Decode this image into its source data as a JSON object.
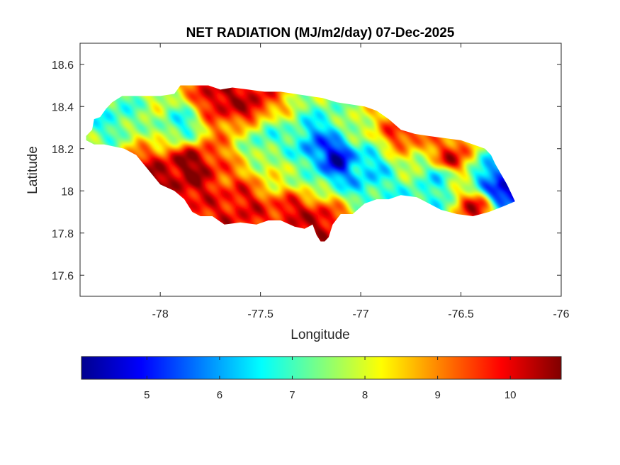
{
  "chart_data": {
    "type": "heatmap",
    "title": "NET RADIATION (MJ/m2/day) 07-Dec-2025",
    "xlabel": "Longitude",
    "ylabel": "Latitude",
    "xlim": [
      -78.4,
      -76
    ],
    "ylim": [
      17.5,
      18.7
    ],
    "xticks": [
      -78,
      -77.5,
      -77,
      -76.5,
      -76
    ],
    "yticks": [
      17.6,
      17.8,
      18,
      18.2,
      18.4,
      18.6
    ],
    "colormap": "jet",
    "colorbar": {
      "orientation": "horizontal",
      "range": [
        4.1,
        10.7
      ],
      "ticks": [
        5,
        6,
        7,
        8,
        9,
        10
      ]
    },
    "region_outline": [
      [
        -78.37,
        18.26
      ],
      [
        -78.34,
        18.29
      ],
      [
        -78.33,
        18.34
      ],
      [
        -78.3,
        18.35
      ],
      [
        -78.27,
        18.39
      ],
      [
        -78.24,
        18.42
      ],
      [
        -78.19,
        18.45
      ],
      [
        -78.13,
        18.45
      ],
      [
        -78.07,
        18.45
      ],
      [
        -78.0,
        18.45
      ],
      [
        -77.93,
        18.46
      ],
      [
        -77.9,
        18.5
      ],
      [
        -77.84,
        18.5
      ],
      [
        -77.76,
        18.5
      ],
      [
        -77.7,
        18.48
      ],
      [
        -77.64,
        18.49
      ],
      [
        -77.56,
        18.48
      ],
      [
        -77.48,
        18.47
      ],
      [
        -77.4,
        18.47
      ],
      [
        -77.33,
        18.46
      ],
      [
        -77.26,
        18.45
      ],
      [
        -77.19,
        18.44
      ],
      [
        -77.12,
        18.42
      ],
      [
        -77.05,
        18.41
      ],
      [
        -76.98,
        18.4
      ],
      [
        -76.92,
        18.38
      ],
      [
        -76.86,
        18.34
      ],
      [
        -76.8,
        18.29
      ],
      [
        -76.73,
        18.27
      ],
      [
        -76.66,
        18.26
      ],
      [
        -76.58,
        18.25
      ],
      [
        -76.5,
        18.24
      ],
      [
        -76.44,
        18.22
      ],
      [
        -76.38,
        18.2
      ],
      [
        -76.35,
        18.17
      ],
      [
        -76.33,
        18.13
      ],
      [
        -76.3,
        18.08
      ],
      [
        -76.27,
        18.03
      ],
      [
        -76.25,
        17.99
      ],
      [
        -76.23,
        17.95
      ],
      [
        -76.28,
        17.93
      ],
      [
        -76.36,
        17.9
      ],
      [
        -76.44,
        17.88
      ],
      [
        -76.52,
        17.89
      ],
      [
        -76.6,
        17.91
      ],
      [
        -76.66,
        17.94
      ],
      [
        -76.72,
        17.97
      ],
      [
        -76.8,
        17.98
      ],
      [
        -76.86,
        17.96
      ],
      [
        -76.92,
        17.96
      ],
      [
        -76.98,
        17.94
      ],
      [
        -77.04,
        17.89
      ],
      [
        -77.1,
        17.89
      ],
      [
        -77.14,
        17.84
      ],
      [
        -77.16,
        17.78
      ],
      [
        -77.18,
        17.76
      ],
      [
        -77.2,
        17.76
      ],
      [
        -77.22,
        17.79
      ],
      [
        -77.24,
        17.84
      ],
      [
        -77.28,
        17.82
      ],
      [
        -77.33,
        17.83
      ],
      [
        -77.4,
        17.86
      ],
      [
        -77.46,
        17.86
      ],
      [
        -77.52,
        17.84
      ],
      [
        -77.6,
        17.85
      ],
      [
        -77.68,
        17.84
      ],
      [
        -77.74,
        17.88
      ],
      [
        -77.8,
        17.88
      ],
      [
        -77.84,
        17.9
      ],
      [
        -77.88,
        17.96
      ],
      [
        -77.93,
        18.0
      ],
      [
        -78.0,
        18.03
      ],
      [
        -78.06,
        18.1
      ],
      [
        -78.12,
        18.17
      ],
      [
        -78.18,
        18.2
      ],
      [
        -78.23,
        18.21
      ],
      [
        -78.28,
        18.22
      ],
      [
        -78.33,
        18.22
      ],
      [
        -78.37,
        18.24
      ]
    ],
    "field_components": [
      {
        "lon": -77.85,
        "lat": 18.12,
        "value": 10.6
      },
      {
        "lon": -78.0,
        "lat": 18.05,
        "value": 10.5
      },
      {
        "lon": -77.7,
        "lat": 18.45,
        "value": 10.4
      },
      {
        "lon": -77.55,
        "lat": 18.42,
        "value": 10.2
      },
      {
        "lon": -77.35,
        "lat": 17.9,
        "value": 10.1
      },
      {
        "lon": -77.2,
        "lat": 17.84,
        "value": 10.3
      },
      {
        "lon": -77.6,
        "lat": 17.92,
        "value": 10.0
      },
      {
        "lon": -76.55,
        "lat": 18.15,
        "value": 10.2
      },
      {
        "lon": -76.42,
        "lat": 17.92,
        "value": 10.1
      },
      {
        "lon": -76.8,
        "lat": 18.3,
        "value": 9.9
      },
      {
        "lon": -77.12,
        "lat": 18.16,
        "value": 4.6
      },
      {
        "lon": -77.22,
        "lat": 18.2,
        "value": 5.7
      },
      {
        "lon": -76.98,
        "lat": 18.1,
        "value": 6.3
      },
      {
        "lon": -76.3,
        "lat": 18.01,
        "value": 4.4
      },
      {
        "lon": -76.33,
        "lat": 18.07,
        "value": 5.6
      },
      {
        "lon": -76.6,
        "lat": 18.07,
        "value": 6.6
      },
      {
        "lon": -77.9,
        "lat": 18.31,
        "value": 6.8
      },
      {
        "lon": -78.24,
        "lat": 18.36,
        "value": 6.9
      },
      {
        "lon": -77.48,
        "lat": 18.25,
        "value": 7.0
      },
      {
        "lon": -77.34,
        "lat": 18.08,
        "value": 7.7
      },
      {
        "lon": -76.7,
        "lat": 17.92,
        "value": 6.5
      },
      {
        "lon": -77.0,
        "lat": 18.3,
        "value": 8.0
      }
    ]
  }
}
